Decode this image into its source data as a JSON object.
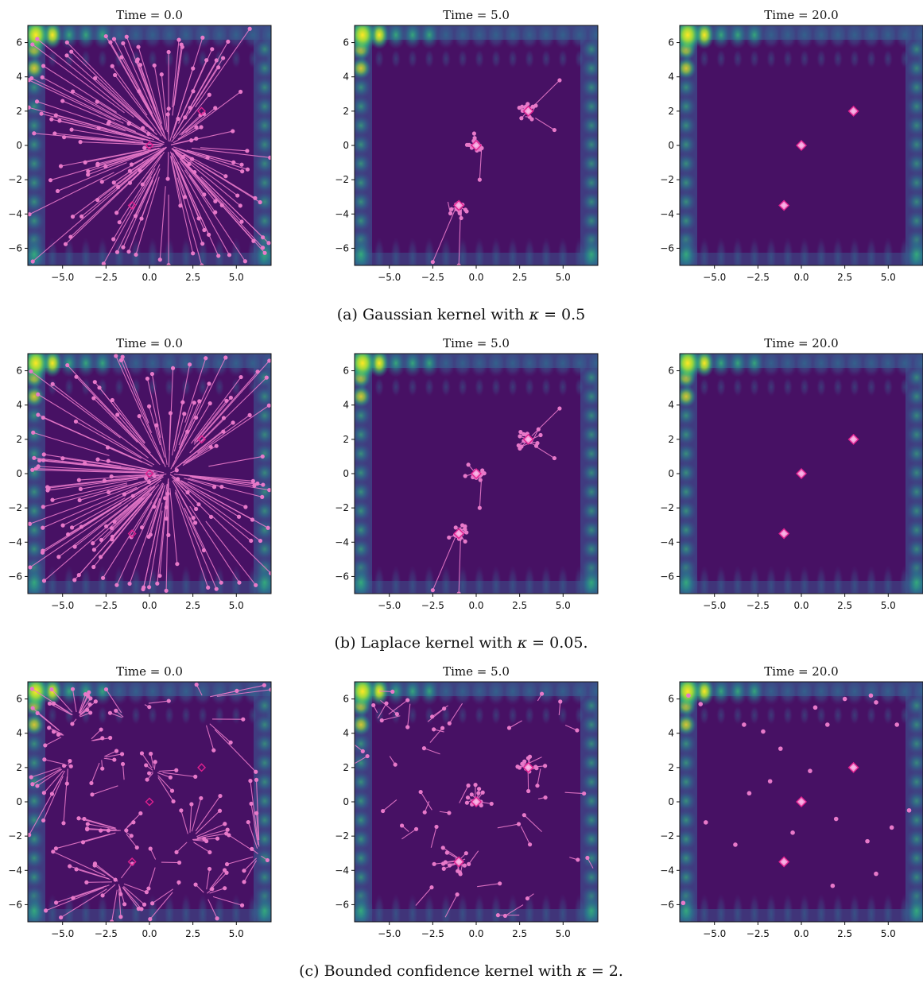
{
  "chart_data": {
    "type": "scatter",
    "x_ticks": [
      "−5.0",
      "−2.5",
      "0.0",
      "2.5",
      "5.0"
    ],
    "y_ticks": [
      "6",
      "4",
      "2",
      "0",
      "−2",
      "−4",
      "−6"
    ],
    "xlim": [
      -7,
      7
    ],
    "ylim": [
      -7,
      7
    ],
    "background": "contour of objective (viridis)",
    "particle_color": "#e879c9",
    "target_color": "#e0208f",
    "targets": [
      [
        0,
        0
      ],
      [
        3,
        2
      ],
      [
        -1,
        -3.5
      ]
    ],
    "rows": [
      {
        "caption_prefix": "(a) Gaussian kernel with ",
        "kappa_symbol": "κ",
        "caption_suffix": " = 0.5",
        "panels": [
          {
            "title": "Time = 0.0",
            "state": "initial"
          },
          {
            "title": "Time = 5.0",
            "state": "clustering"
          },
          {
            "title": "Time = 20.0",
            "state": "converged"
          }
        ]
      },
      {
        "caption_prefix": "(b) Laplace kernel with ",
        "kappa_symbol": "κ",
        "caption_suffix": " = 0.05.",
        "panels": [
          {
            "title": "Time = 0.0",
            "state": "initial"
          },
          {
            "title": "Time = 5.0",
            "state": "clustering"
          },
          {
            "title": "Time = 20.0",
            "state": "converged"
          }
        ]
      },
      {
        "caption_prefix": "(c) Bounded confidence kernel with ",
        "kappa_symbol": "κ",
        "caption_suffix": " = 2.",
        "panels": [
          {
            "title": "Time = 0.0",
            "state": "initial_local"
          },
          {
            "title": "Time = 5.0",
            "state": "clustering_local"
          },
          {
            "title": "Time = 20.0",
            "state": "converged_local"
          }
        ]
      }
    ]
  }
}
